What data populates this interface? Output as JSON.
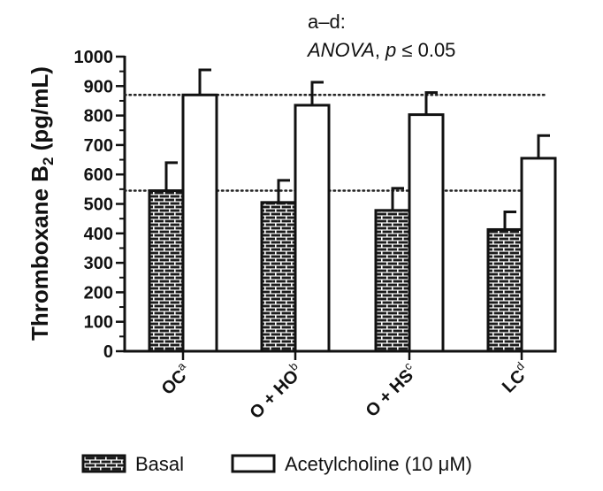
{
  "chart_data": {
    "type": "bar",
    "annotation": {
      "line1": "a–d:",
      "line2_italic": "ANOVA",
      "line2_sep": ", ",
      "line2_p": "p",
      "line2_rest": " ≤ 0.05"
    },
    "ylabel": {
      "main": "Thromboxane B",
      "sub": "2",
      "unit": " (pg/mL)"
    },
    "ylim": [
      0,
      1000
    ],
    "yticks": [
      0,
      100,
      200,
      300,
      400,
      500,
      600,
      700,
      800,
      900,
      1000
    ],
    "categories": [
      {
        "label": "OC",
        "sup": "a"
      },
      {
        "label": "O + HO",
        "sup": "b"
      },
      {
        "label": "O + HS",
        "sup": "c"
      },
      {
        "label": "LC",
        "sup": "d"
      }
    ],
    "series": [
      {
        "name": "Basal",
        "pattern": "brick",
        "values": [
          545,
          505,
          478,
          413
        ],
        "errors": [
          95,
          75,
          75,
          60
        ]
      },
      {
        "name": "Acetylcholine (10 μM)",
        "pattern": "open",
        "values": [
          870,
          835,
          803,
          655
        ],
        "errors": [
          85,
          78,
          75,
          77
        ]
      }
    ],
    "reference_lines": [
      870,
      545
    ],
    "reference_style": "dotted",
    "grid": false,
    "legend_position": "bottom"
  }
}
